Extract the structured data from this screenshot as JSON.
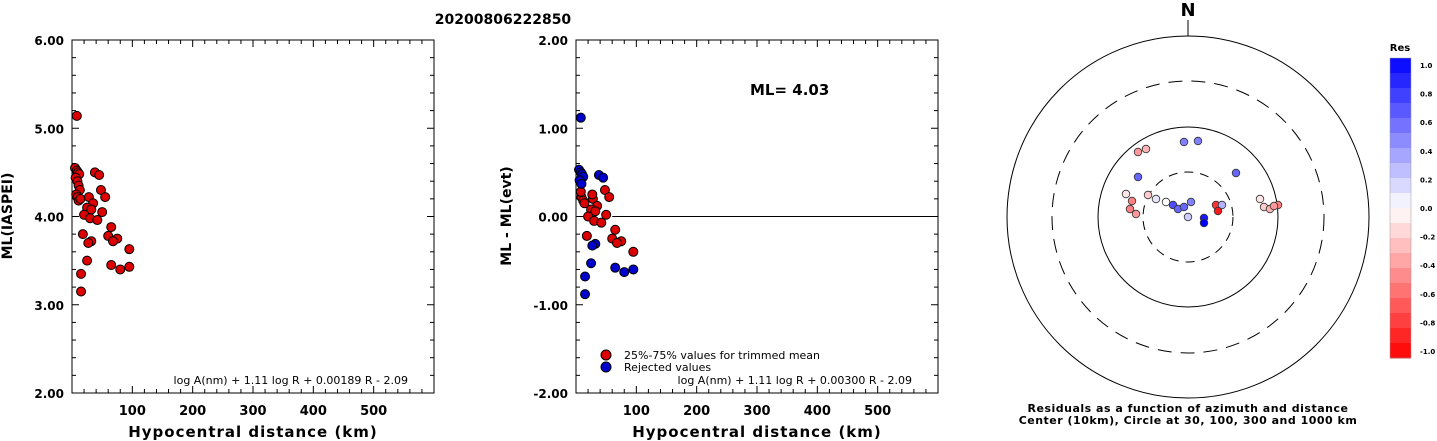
{
  "title": "20200806222850",
  "chart_data": [
    {
      "type": "scatter",
      "ylabel": "ML(IASPEI)",
      "xlabel": "Hypocentral distance (km)",
      "xlim": [
        0,
        600
      ],
      "ylim": [
        2.0,
        6.0
      ],
      "xticks": [
        "100",
        "200",
        "300",
        "400",
        "500"
      ],
      "yticks": [
        "2.00",
        "3.00",
        "4.00",
        "5.00",
        "6.00"
      ],
      "formula": "log A(nm) + 1.11 log R + 0.00189 R - 2.09",
      "marker_color": "#dd0000",
      "points": [
        [
          8,
          5.14
        ],
        [
          5,
          4.55
        ],
        [
          8,
          4.52
        ],
        [
          10,
          4.5
        ],
        [
          12,
          4.48
        ],
        [
          6,
          4.44
        ],
        [
          9,
          4.4
        ],
        [
          11,
          4.35
        ],
        [
          13,
          4.3
        ],
        [
          7,
          4.25
        ],
        [
          9,
          4.22
        ],
        [
          11,
          4.18
        ],
        [
          14,
          4.2
        ],
        [
          28,
          4.22
        ],
        [
          38,
          4.5
        ],
        [
          45,
          4.47
        ],
        [
          48,
          4.3
        ],
        [
          55,
          4.22
        ],
        [
          35,
          4.15
        ],
        [
          25,
          4.1
        ],
        [
          32,
          4.08
        ],
        [
          50,
          4.05
        ],
        [
          20,
          4.02
        ],
        [
          30,
          3.98
        ],
        [
          42,
          3.96
        ],
        [
          65,
          3.88
        ],
        [
          18,
          3.8
        ],
        [
          60,
          3.78
        ],
        [
          75,
          3.75
        ],
        [
          68,
          3.72
        ],
        [
          32,
          3.72
        ],
        [
          27,
          3.7
        ],
        [
          95,
          3.63
        ],
        [
          25,
          3.5
        ],
        [
          65,
          3.45
        ],
        [
          95,
          3.43
        ],
        [
          80,
          3.4
        ],
        [
          15,
          3.35
        ],
        [
          15,
          3.15
        ]
      ]
    },
    {
      "type": "scatter",
      "ylabel": "ML - ML(evt)",
      "xlabel": "Hypocentral distance (km)",
      "xlim": [
        0,
        600
      ],
      "ylim": [
        -2.0,
        2.0
      ],
      "xticks": [
        "100",
        "200",
        "300",
        "400",
        "500"
      ],
      "yticks": [
        "-2.00",
        "-1.00",
        "0.00",
        "1.00",
        "2.00"
      ],
      "ml_label": "ML= 4.03",
      "zero_line": 0.0,
      "formula": "log A(nm) + 1.11 log R + 0.00300 R - 2.09",
      "series": [
        {
          "name": "25%-75% values for trimmed mean",
          "color": "#dd0000",
          "points": [
            [
              9,
              0.22
            ],
            [
              12,
              0.18
            ],
            [
              14,
              0.15
            ],
            [
              28,
              0.2
            ],
            [
              48,
              0.3
            ],
            [
              55,
              0.22
            ],
            [
              35,
              0.12
            ],
            [
              25,
              0.08
            ],
            [
              32,
              0.06
            ],
            [
              50,
              0.02
            ],
            [
              20,
              0.0
            ],
            [
              30,
              -0.05
            ],
            [
              42,
              -0.07
            ],
            [
              65,
              -0.15
            ],
            [
              18,
              -0.22
            ],
            [
              60,
              -0.25
            ],
            [
              75,
              -0.28
            ],
            [
              68,
              -0.3
            ],
            [
              95,
              -0.4
            ],
            [
              8,
              0.28
            ],
            [
              27,
              0.25
            ]
          ]
        },
        {
          "name": "Rejected values",
          "color": "#0000cc",
          "points": [
            [
              8,
              1.12
            ],
            [
              5,
              0.53
            ],
            [
              8,
              0.5
            ],
            [
              10,
              0.48
            ],
            [
              12,
              0.45
            ],
            [
              6,
              0.41
            ],
            [
              9,
              0.37
            ],
            [
              38,
              0.47
            ],
            [
              45,
              0.44
            ],
            [
              32,
              -0.31
            ],
            [
              27,
              -0.33
            ],
            [
              25,
              -0.53
            ],
            [
              65,
              -0.58
            ],
            [
              95,
              -0.6
            ],
            [
              80,
              -0.63
            ],
            [
              15,
              -0.68
            ],
            [
              15,
              -0.88
            ]
          ]
        }
      ]
    },
    {
      "type": "polar-scatter",
      "north_label": "N",
      "caption_line1": "Residuals as a function of azimuth and distance",
      "caption_line2": "Center (10km), Circle at 30, 100, 300 and 1000 km",
      "rings_km": [
        30,
        100,
        300,
        1000
      ],
      "colorbar": {
        "title": "Res",
        "min": -1.0,
        "max": 1.0,
        "ticks": [
          "1.0",
          "0.8",
          "0.6",
          "0.4",
          "0.2",
          "0.0",
          "-0.2",
          "-0.4",
          "-0.6",
          "-0.8",
          "-1.0"
        ],
        "positive_color": "#0000ee",
        "negative_color": "#ee0000"
      },
      "stations": [
        [
          0,
          0,
          0.2
        ],
        [
          -50,
          -65,
          -0.4
        ],
        [
          -42,
          -68,
          -0.3
        ],
        [
          -4,
          -75,
          0.5
        ],
        [
          10,
          -76,
          0.5
        ],
        [
          -50,
          -40,
          0.6
        ],
        [
          -40,
          -22,
          -0.2
        ],
        [
          -62,
          -23,
          -0.1
        ],
        [
          -32,
          -18,
          0.1
        ],
        [
          -22,
          -15,
          0.0
        ],
        [
          -15,
          -12,
          0.7
        ],
        [
          -10,
          -8,
          0.6
        ],
        [
          -4,
          -10,
          0.6
        ],
        [
          3,
          -15,
          0.5
        ],
        [
          -56,
          -16,
          -0.5
        ],
        [
          -58,
          -8,
          -0.5
        ],
        [
          -52,
          -3,
          -0.4
        ],
        [
          28,
          -12,
          -0.8
        ],
        [
          34,
          -12,
          0.3
        ],
        [
          30,
          -6,
          -0.9
        ],
        [
          16,
          1,
          0.9
        ],
        [
          16,
          6,
          1.0
        ],
        [
          48,
          -44,
          0.6
        ],
        [
          72,
          -18,
          -0.1
        ],
        [
          76,
          -10,
          -0.2
        ],
        [
          82,
          -8,
          -0.3
        ],
        [
          90,
          -12,
          -0.5
        ],
        [
          86,
          -11,
          -0.4
        ]
      ]
    }
  ]
}
